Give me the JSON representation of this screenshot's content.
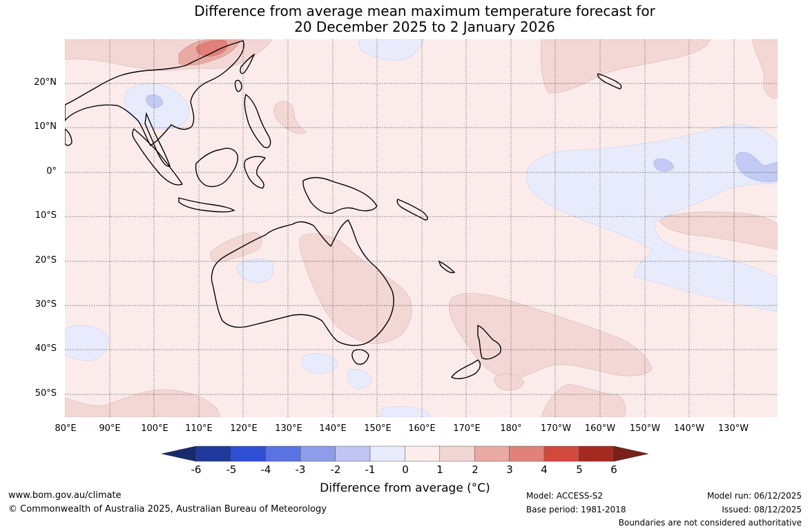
{
  "title": {
    "line1": "Difference from average mean maximum temperature forecast for",
    "line2": "20 December 2025 to 2 January 2026"
  },
  "axes": {
    "lat_labels": [
      "20°N",
      "10°N",
      "0°",
      "10°S",
      "20°S",
      "30°S",
      "40°S",
      "50°S"
    ],
    "lon_labels": [
      "80°E",
      "90°E",
      "100°E",
      "110°E",
      "120°E",
      "130°E",
      "140°E",
      "150°E",
      "160°E",
      "170°E",
      "180°",
      "170°W",
      "160°W",
      "150°W",
      "140°W",
      "130°W"
    ]
  },
  "colorbar": {
    "ticks": [
      "-6",
      "-5",
      "-4",
      "-3",
      "-2",
      "-1",
      "0",
      "1",
      "2",
      "3",
      "4",
      "5",
      "6"
    ],
    "colors": [
      "#1f3a9c",
      "#2f4fd4",
      "#5a73e2",
      "#8d9de9",
      "#bfc6f3",
      "#e8ebfb",
      "#fcecec",
      "#f2d6d4",
      "#e9aaa4",
      "#e0827a",
      "#d24a3f",
      "#a5291f"
    ],
    "under_color": "#18296e",
    "over_color": "#7a1f1a",
    "label": "Difference from average (°C)"
  },
  "footer": {
    "website": "www.bom.gov.au/climate",
    "copyright": "© Commonwealth of Australia 2025, Australian Bureau of Meteorology",
    "model": "Model: ACCESS-S2",
    "base_period": "Base period: 1981-2018",
    "model_run": "Model run: 06/12/2025",
    "issued": "Issued: 08/12/2025",
    "disclaimer": "Boundaries are not considered authoritative"
  },
  "colors": {
    "background": "#fbeceb",
    "warm_1_2": "#f2d7d5",
    "warm_2_3": "#e9aaa4",
    "warm_3_4": "#e08079",
    "cool_0_1": "#e8ebfb",
    "cool_1_2": "#c3cbf4"
  }
}
